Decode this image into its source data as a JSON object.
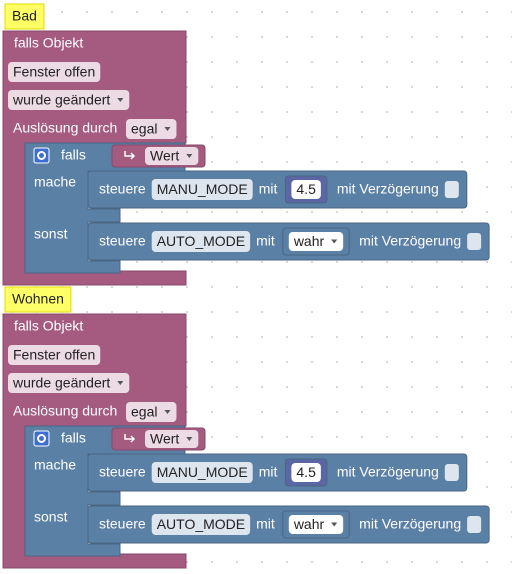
{
  "groups": [
    {
      "label": "Bad",
      "trigger": {
        "title": "falls Objekt",
        "object": "Fenster offen",
        "condition": "wurde geändert",
        "source_label": "Auslösung durch",
        "source": "egal"
      },
      "if": {
        "keyword": "falls",
        "variable": "Wert",
        "then_label": "mache",
        "then": {
          "action": "steuere",
          "state": "MANU_MODE",
          "with": "mit",
          "value": 4.5,
          "delay": "mit Verzögerung"
        },
        "else_label": "sonst",
        "else": {
          "action": "steuere",
          "state": "AUTO_MODE",
          "with": "mit",
          "value": "wahr",
          "delay": "mit Verzögerung"
        }
      }
    },
    {
      "label": "Wohnen",
      "trigger": {
        "title": "falls Objekt",
        "object": "Fenster offen",
        "condition": "wurde geändert",
        "source_label": "Auslösung durch",
        "source": "egal"
      },
      "if": {
        "keyword": "falls",
        "variable": "Wert",
        "then_label": "mache",
        "then": {
          "action": "steuere",
          "state": "MANU_MODE",
          "with": "mit",
          "value": 4.5,
          "delay": "mit Verzögerung"
        },
        "else_label": "sonst",
        "else": {
          "action": "steuere",
          "state": "AUTO_MODE",
          "with": "mit",
          "value": "wahr",
          "delay": "mit Verzögerung"
        }
      }
    }
  ]
}
